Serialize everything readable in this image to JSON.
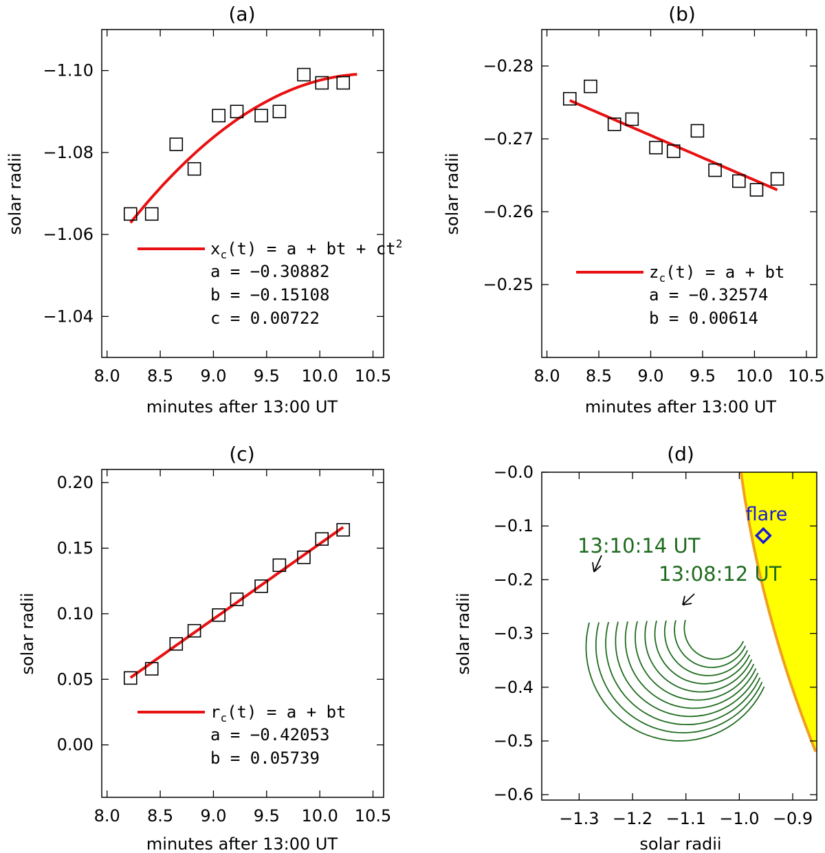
{
  "chart_data": [
    {
      "type": "scatter",
      "title": "(a)",
      "xlabel": "minutes after 13:00 UT",
      "ylabel": "solar radii",
      "xlim": [
        7.95,
        10.6
      ],
      "ylim": [
        -1.03,
        -1.11
      ],
      "xticks": [
        "8.0",
        "8.5",
        "9.0",
        "9.5",
        "10.0",
        "10.5"
      ],
      "xtick_values": [
        8.0,
        8.5,
        9.0,
        9.5,
        10.0,
        10.5
      ],
      "yticks": [
        "−1.10",
        "−1.08",
        "−1.06",
        "−1.04"
      ],
      "ytick_values": [
        -1.1,
        -1.08,
        -1.06,
        -1.04
      ],
      "points": {
        "x": [
          8.22,
          8.42,
          8.65,
          8.82,
          9.05,
          9.22,
          9.45,
          9.62,
          9.85,
          10.02,
          10.22
        ],
        "y": [
          -1.065,
          -1.065,
          -1.082,
          -1.076,
          -1.089,
          -1.09,
          -1.089,
          -1.09,
          -1.099,
          -1.097,
          -1.097
        ]
      },
      "fit": {
        "form": "quadratic",
        "a": -0.30882,
        "b": -0.15108,
        "c": 0.00722,
        "x_range": [
          8.22,
          10.35
        ]
      },
      "legend": {
        "line1_text": "x",
        "line1_sub": "c",
        "line1_rest": "(t) = a + bt + ct",
        "line1_sup": "2",
        "lines": [
          "a = −0.30882",
          "b = −0.15108",
          "c = 0.00722"
        ]
      }
    },
    {
      "type": "scatter",
      "title": "(b)",
      "xlabel": "minutes after 13:00 UT",
      "ylabel": "solar radii",
      "xlim": [
        7.95,
        10.6
      ],
      "ylim": [
        -0.24,
        -0.285
      ],
      "xticks": [
        "8.0",
        "8.5",
        "9.0",
        "9.5",
        "10.0",
        "10.5"
      ],
      "xtick_values": [
        8.0,
        8.5,
        9.0,
        9.5,
        10.0,
        10.5
      ],
      "yticks": [
        "−0.28",
        "−0.27",
        "−0.26",
        "−0.25"
      ],
      "ytick_values": [
        -0.28,
        -0.27,
        -0.26,
        -0.25
      ],
      "points": {
        "x": [
          8.22,
          8.42,
          8.65,
          8.82,
          9.05,
          9.22,
          9.45,
          9.62,
          9.85,
          10.02,
          10.22
        ],
        "y": [
          -0.2755,
          -0.2772,
          -0.272,
          -0.2727,
          -0.2688,
          -0.2683,
          -0.2711,
          -0.2657,
          -0.2642,
          -0.263,
          -0.2645
        ]
      },
      "fit": {
        "form": "linear",
        "a": -0.32574,
        "b": 0.00614,
        "x_range": [
          8.22,
          10.22
        ]
      },
      "legend": {
        "line1_text": "z",
        "line1_sub": "c",
        "line1_rest": "(t) = a + bt",
        "line1_sup": "",
        "lines": [
          "a = −0.32574",
          "b = 0.00614"
        ]
      }
    },
    {
      "type": "scatter",
      "title": "(c)",
      "xlabel": "minutes after 13:00 UT",
      "ylabel": "solar radii",
      "xlim": [
        7.95,
        10.6
      ],
      "ylim": [
        -0.04,
        0.21
      ],
      "xticks": [
        "8.0",
        "8.5",
        "9.0",
        "9.5",
        "10.0",
        "10.5"
      ],
      "xtick_values": [
        8.0,
        8.5,
        9.0,
        9.5,
        10.0,
        10.5
      ],
      "yticks": [
        "0.00",
        "0.05",
        "0.10",
        "0.15",
        "0.20"
      ],
      "ytick_values": [
        0.0,
        0.05,
        0.1,
        0.15,
        0.2
      ],
      "points": {
        "x": [
          8.22,
          8.42,
          8.65,
          8.82,
          9.05,
          9.22,
          9.45,
          9.62,
          9.85,
          10.02,
          10.22
        ],
        "y": [
          0.051,
          0.058,
          0.077,
          0.087,
          0.099,
          0.111,
          0.121,
          0.137,
          0.143,
          0.157,
          0.164
        ]
      },
      "fit": {
        "form": "linear",
        "a": -0.42053,
        "b": 0.05739,
        "x_range": [
          8.22,
          10.22
        ]
      },
      "legend": {
        "line1_text": "r",
        "line1_sub": "c",
        "line1_rest": "(t) = a + bt",
        "line1_sup": "",
        "lines": [
          "a = −0.42053",
          "b = 0.05739"
        ]
      }
    },
    {
      "type": "line",
      "title": "(d)",
      "xlabel": "solar radii",
      "ylabel": "solar radii",
      "xlim": [
        -1.37,
        -0.855
      ],
      "ylim": [
        -0.61,
        0.0
      ],
      "xticks": [
        "−1.3",
        "−1.2",
        "−1.1",
        "−1.0",
        "−0.9"
      ],
      "xtick_values": [
        -1.3,
        -1.2,
        -1.1,
        -1.0,
        -0.9
      ],
      "yticks": [
        "−0.0",
        "−0.1",
        "−0.2",
        "−0.3",
        "−0.4",
        "−0.5",
        "−0.6"
      ],
      "ytick_values": [
        0.0,
        -0.1,
        -0.2,
        -0.3,
        -0.4,
        -0.5,
        -0.6
      ],
      "sun_limb": {
        "x_top": -0.997,
        "y_top": 0.0,
        "x_bottom": -0.857,
        "y_bottom": -0.52,
        "fill": "#ffff00",
        "edge": "#f0a020"
      },
      "flare": {
        "x": -0.955,
        "y": -0.118,
        "label": "flare",
        "color": "#1a1ad6"
      },
      "fronts": {
        "color": "#1e6b1e",
        "count": 11,
        "start_center": [
          -1.045,
          -0.29
        ],
        "end_center": [
          -1.112,
          -0.325
        ],
        "start_radius": 0.058,
        "end_radius": 0.175,
        "start_angle_deg": 165,
        "end_angle_deg": 335
      },
      "annotations": [
        {
          "text": "13:10:14 UT",
          "x": -1.25,
          "y": -0.145
        },
        {
          "text": "13:08:12 UT",
          "x": -1.05,
          "y": -0.2
        }
      ]
    }
  ]
}
